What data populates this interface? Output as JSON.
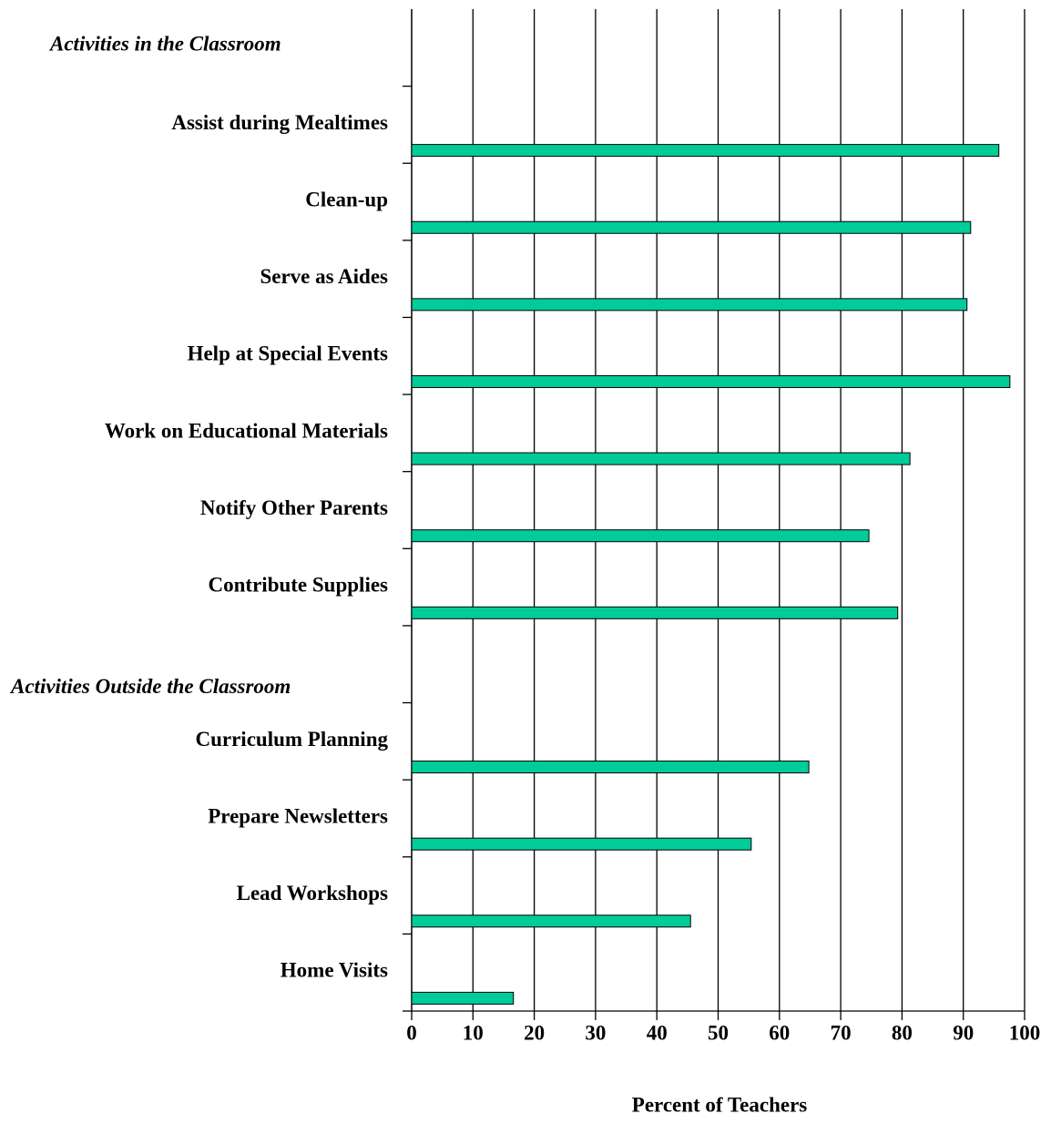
{
  "chart_data": {
    "type": "bar",
    "orientation": "horizontal",
    "x_label": "Percent of Teachers",
    "color": "#00cc99",
    "groups": [
      {
        "name": "Activities in the Classroom",
        "categories": [
          "Assist during Mealtimes",
          "Clean-up",
          "Serve as Aides",
          "Help at Special Events",
          "Work on Educational Materials",
          "Notify Other Parents",
          "Contribute Supplies"
        ],
        "values": [
          95.8,
          91.2,
          90.6,
          97.6,
          81.3,
          74.6,
          79.3
        ]
      },
      {
        "name": "Activities Outside the Classroom",
        "categories": [
          "Curriculum Planning",
          "Prepare Newsletters",
          "Lead Workshops",
          "Home Visits"
        ],
        "values": [
          64.8,
          55.4,
          45.5,
          16.6
        ]
      }
    ],
    "xlim": [
      0,
      100
    ],
    "xticks": [
      0,
      10,
      20,
      30,
      40,
      50,
      60,
      70,
      80,
      90,
      100
    ],
    "grid": true
  }
}
